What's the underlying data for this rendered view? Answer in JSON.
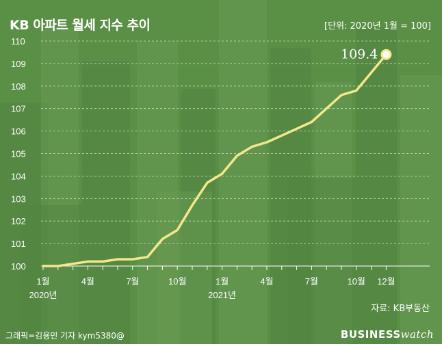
{
  "header": {
    "title": "KB 아파트 월세 지수 추이",
    "unit": "[단위: 2020년 1월 = 100]"
  },
  "footer": {
    "source": "자료: KB부동산",
    "credit": "그래픽=김용민 기자 kym5380@",
    "brand_left": "BUSINESS",
    "brand_right": "watch"
  },
  "colors": {
    "background": "#5a8f46",
    "line": "#f3e88c",
    "grid": "#e6ecd8",
    "text": "#ffffff"
  },
  "chart_data": {
    "type": "line",
    "title": "KB 아파트 월세 지수 추이",
    "unit_note": "[단위: 2020년 1월 = 100]",
    "ylim": [
      100,
      110
    ],
    "yticks": [
      100,
      101,
      102,
      103,
      104,
      105,
      106,
      107,
      108,
      109,
      110
    ],
    "grid": "horizontal",
    "x": [
      "2020-01",
      "2020-02",
      "2020-03",
      "2020-04",
      "2020-05",
      "2020-06",
      "2020-07",
      "2020-08",
      "2020-09",
      "2020-10",
      "2020-11",
      "2020-12",
      "2021-01",
      "2021-02",
      "2021-03",
      "2021-04",
      "2021-05",
      "2021-06",
      "2021-07",
      "2021-08",
      "2021-09",
      "2021-10",
      "2021-11",
      "2021-12"
    ],
    "xtick_labels": [
      {
        "x": "2020-01",
        "label": "1월",
        "year": "2020년"
      },
      {
        "x": "2020-04",
        "label": "4월"
      },
      {
        "x": "2020-07",
        "label": "7월"
      },
      {
        "x": "2020-10",
        "label": "10월"
      },
      {
        "x": "2021-01",
        "label": "1월",
        "year": "2021년"
      },
      {
        "x": "2021-04",
        "label": "4월"
      },
      {
        "x": "2021-07",
        "label": "7월"
      },
      {
        "x": "2021-10",
        "label": "10월"
      },
      {
        "x": "2021-12",
        "label": "12월"
      }
    ],
    "series": [
      {
        "values": [
          100.0,
          100.0,
          100.1,
          100.2,
          100.2,
          100.3,
          100.3,
          100.4,
          101.2,
          101.6,
          102.7,
          103.7,
          104.1,
          104.9,
          105.3,
          105.5,
          105.8,
          106.1,
          106.4,
          107.0,
          107.6,
          107.8,
          108.6,
          109.4
        ]
      }
    ],
    "annotations": [
      {
        "x": "2021-12",
        "y": 109.4,
        "text": "109.4"
      }
    ]
  }
}
